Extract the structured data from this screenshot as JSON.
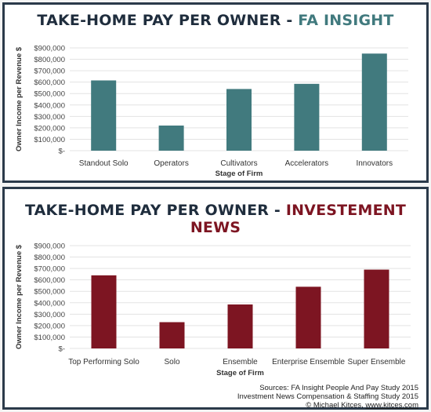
{
  "chart_data": [
    {
      "type": "bar",
      "title": "TAKE-HOME PAY PER OWNER - ",
      "title_accent": "FA INSIGHT",
      "title_accent_color": "#417a7e",
      "bar_color": "#417a7e",
      "xlabel": "Stage of Firm",
      "ylabel": "Owner Income per Revenue $",
      "categories": [
        "Standout Solo",
        "Operators",
        "Cultivators",
        "Accelerators",
        "Innovators"
      ],
      "values": [
        615000,
        220000,
        540000,
        585000,
        850000
      ],
      "ylim": [
        0,
        900000
      ],
      "yticks": [
        0,
        100000,
        200000,
        300000,
        400000,
        500000,
        600000,
        700000,
        800000,
        900000
      ],
      "ytick_labels": [
        "$-",
        "$100,000",
        "$200,000",
        "$300,000",
        "$400,000",
        "$500,000",
        "$600,000",
        "$700,000",
        "$800,000",
        "$900,000"
      ],
      "grid": true
    },
    {
      "type": "bar",
      "title": "TAKE-HOME PAY PER OWNER - ",
      "title_accent": "INVESTEMENT NEWS",
      "title_accent_color": "#7d1522",
      "bar_color": "#7d1522",
      "xlabel": "Stage of Firm",
      "ylabel": "Owner Income per Revenue $",
      "categories": [
        "Top Performing Solo",
        "Solo",
        "Ensemble",
        "Enterprise Ensemble",
        "Super Ensemble"
      ],
      "values": [
        640000,
        230000,
        385000,
        540000,
        690000
      ],
      "ylim": [
        0,
        900000
      ],
      "yticks": [
        0,
        100000,
        200000,
        300000,
        400000,
        500000,
        600000,
        700000,
        800000,
        900000
      ],
      "ytick_labels": [
        "$-",
        "$100,000",
        "$200,000",
        "$300,000",
        "$400,000",
        "$500,000",
        "$600,000",
        "$700,000",
        "$800,000",
        "$900,000"
      ],
      "grid": true
    }
  ],
  "sources": {
    "line1": "Sources: FA Insight People And Pay Study 2015",
    "line2": "Investment News Compensation & Staffing Study 2015",
    "line3_prefix": "© Michael Kitces, ",
    "line3_link": "www.kitces.com"
  }
}
